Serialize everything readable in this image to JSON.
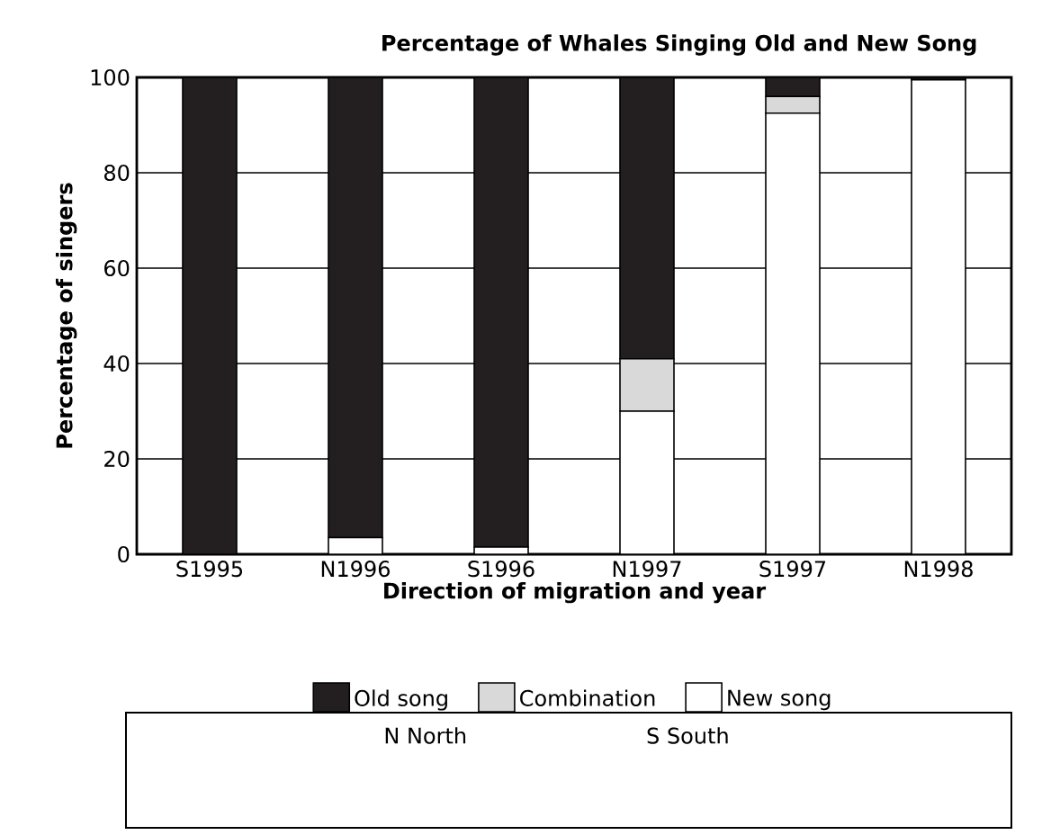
{
  "chart_data": {
    "type": "bar",
    "title": "Percentage of Whales Singing Old and New Song",
    "xlabel": "Direction of migration and year",
    "ylabel": "Percentage of singers",
    "categories": [
      "S1995",
      "N1996",
      "S1996",
      "N1997",
      "S1997",
      "N1998"
    ],
    "stacked": true,
    "series": [
      {
        "name": "New song",
        "color": "#ffffff",
        "values": [
          0,
          3.5,
          1.5,
          30,
          92.5,
          99.5
        ]
      },
      {
        "name": "Combination",
        "color": "#d9d9d9",
        "values": [
          0,
          0,
          0,
          11,
          3.5,
          0
        ]
      },
      {
        "name": "Old song",
        "color": "#231f20",
        "values": [
          100,
          96.5,
          98.5,
          59,
          4,
          0.5
        ]
      }
    ],
    "ylim": [
      0,
      100
    ],
    "yticks": [
      0,
      20,
      40,
      60,
      80,
      100
    ],
    "grid": "y",
    "legend": "bottom",
    "annotations": [
      "N  North",
      "S  South"
    ]
  }
}
